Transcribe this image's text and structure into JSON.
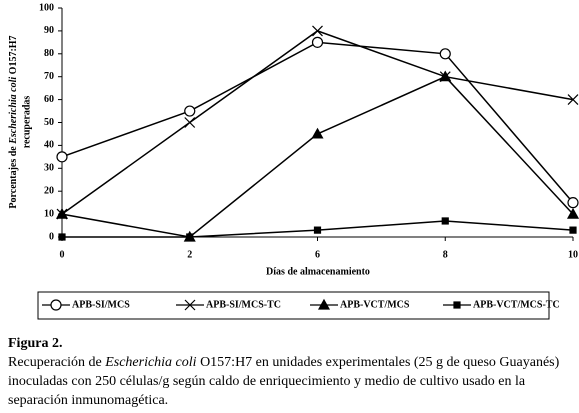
{
  "chart_data": {
    "type": "line",
    "y_label_line1": [
      "Porcentajes de ",
      "Escherichia coli",
      " O157:H7"
    ],
    "y_label_line2": "recuperadas",
    "x_label": "Días de almacenamiento",
    "categories": [
      "0",
      "2",
      "6",
      "8",
      "10"
    ],
    "ylim": [
      0,
      100
    ],
    "yticks": [
      0,
      10,
      20,
      30,
      40,
      50,
      60,
      70,
      80,
      90,
      100
    ],
    "color": "#000000",
    "series": [
      {
        "name": "APB-SI/MCS",
        "marker": "circle",
        "values": [
          35,
          55,
          85,
          80,
          15
        ]
      },
      {
        "name": "APB-SI/MCS-TC",
        "marker": "x",
        "values": [
          10,
          50,
          90,
          70,
          60
        ]
      },
      {
        "name": "APB-VCT/MCS",
        "marker": "triangle",
        "values": [
          10,
          0,
          45,
          70,
          10
        ]
      },
      {
        "name": "APB-VCT/MCS-TC",
        "marker": "square",
        "values": [
          0,
          0,
          3,
          7,
          3
        ]
      }
    ]
  },
  "caption": {
    "label": "Figura 2.",
    "parts": [
      "Recuperación de ",
      "Escherichia coli",
      " O157:H7 en unidades experimentales (25 g de queso Guayanés) inoculadas con 250 células/g según caldo de enriquecimiento y medio de cultivo usado en la separación inmunomagética."
    ]
  }
}
